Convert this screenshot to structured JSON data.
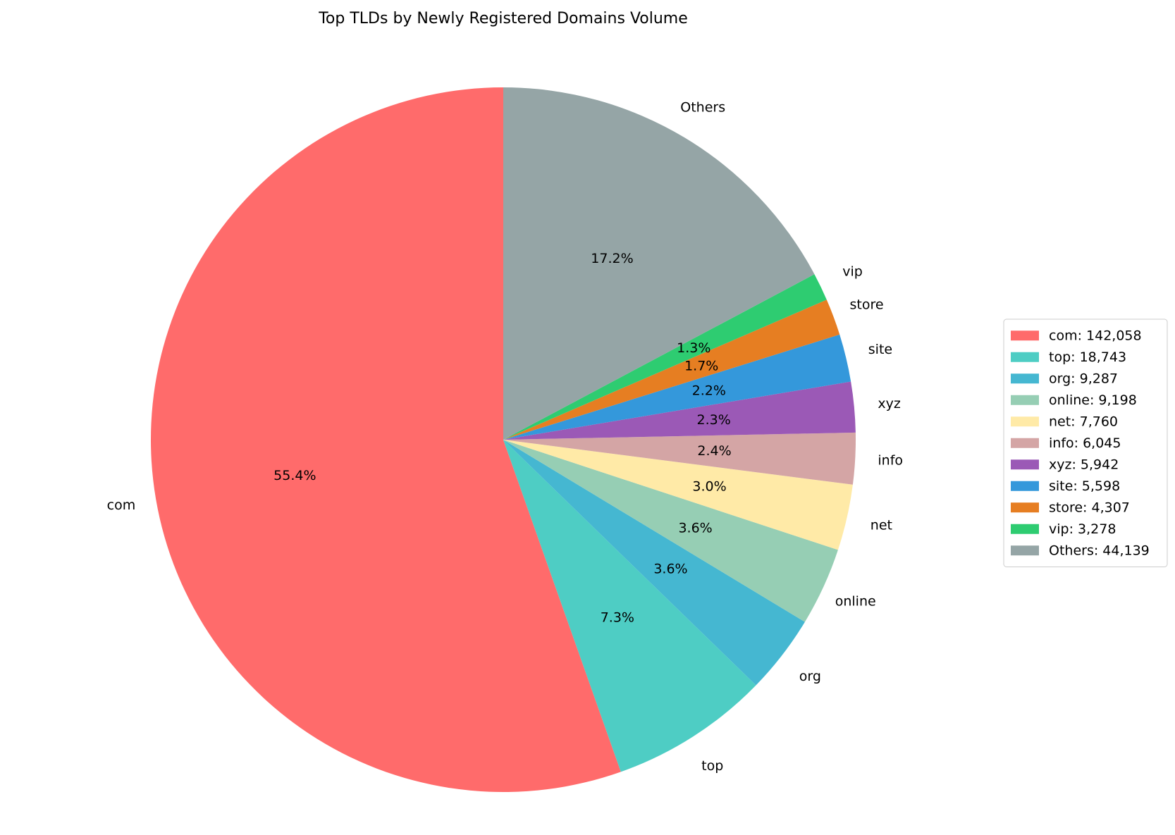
{
  "chart_data": {
    "type": "pie",
    "title": "Top TLDs by Newly Registered Domains Volume",
    "start_angle_deg": 90,
    "direction": "counterclockwise",
    "legend_position": "right",
    "slices": [
      {
        "label": "com",
        "value": 142058,
        "pct_label": "55.4%",
        "legend": "com: 142,058",
        "color": "#FF6B6B"
      },
      {
        "label": "top",
        "value": 18743,
        "pct_label": "7.3%",
        "legend": "top: 18,743",
        "color": "#4ECDC4"
      },
      {
        "label": "org",
        "value": 9287,
        "pct_label": "3.6%",
        "legend": "org: 9,287",
        "color": "#45B7D1"
      },
      {
        "label": "online",
        "value": 9198,
        "pct_label": "3.6%",
        "legend": "online: 9,198",
        "color": "#96CEB4"
      },
      {
        "label": "net",
        "value": 7760,
        "pct_label": "3.0%",
        "legend": "net: 7,760",
        "color": "#FFEAA7"
      },
      {
        "label": "info",
        "value": 6045,
        "pct_label": "2.4%",
        "legend": "info: 6,045",
        "color": "#D4A5A5"
      },
      {
        "label": "xyz",
        "value": 5942,
        "pct_label": "2.3%",
        "legend": "xyz: 5,942",
        "color": "#9B59B6"
      },
      {
        "label": "site",
        "value": 5598,
        "pct_label": "2.2%",
        "legend": "site: 5,598",
        "color": "#3498DB"
      },
      {
        "label": "store",
        "value": 4307,
        "pct_label": "1.7%",
        "legend": "store: 4,307",
        "color": "#E67E22"
      },
      {
        "label": "vip",
        "value": 3278,
        "pct_label": "1.3%",
        "legend": "vip: 3,278",
        "color": "#2ECC71"
      },
      {
        "label": "Others",
        "value": 44139,
        "pct_label": "17.2%",
        "legend": "Others: 44,139",
        "color": "#95A5A6"
      }
    ]
  }
}
